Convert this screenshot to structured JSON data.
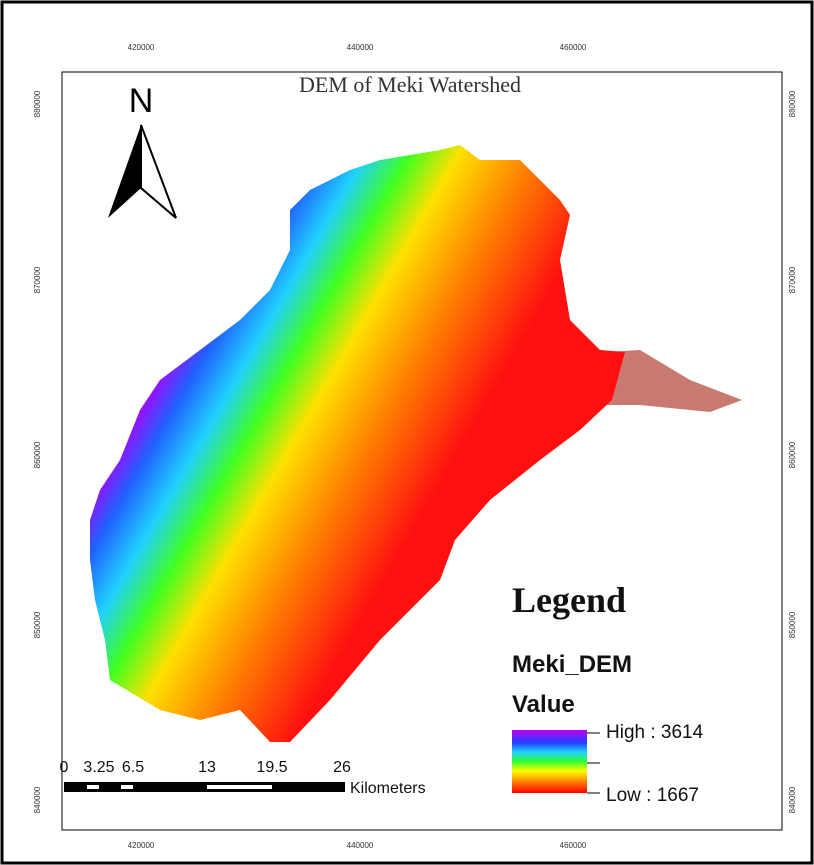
{
  "map": {
    "title": "DEM of Meki Watershed",
    "north": "N",
    "x_labels": [
      "420000",
      "440000",
      "460000"
    ],
    "y_labels": [
      "880000",
      "870000",
      "860000",
      "850000",
      "840000"
    ]
  },
  "legend": {
    "title": "Legend",
    "layer": "Meki_DEM",
    "field": "Value",
    "high": "High : 3614",
    "low": "Low : 1667"
  },
  "scale_bar": {
    "labels": [
      "0",
      "3.25",
      "6.5",
      "13",
      "19.5",
      "26"
    ],
    "unit": "Kilometers"
  }
}
